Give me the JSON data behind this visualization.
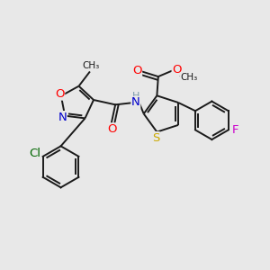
{
  "bg_color": "#e8e8e8",
  "bond_color": "#1a1a1a",
  "bond_width": 1.4,
  "atom_colors": {
    "O": "#ff0000",
    "N": "#0000cc",
    "S": "#ccaa00",
    "Cl": "#006600",
    "F": "#cc00cc",
    "H": "#7a9aaa",
    "C": "#1a1a1a"
  },
  "font_size": 8.5,
  "fig_width": 3.0,
  "fig_height": 3.0,
  "xlim": [
    0,
    10
  ],
  "ylim": [
    0,
    10
  ]
}
